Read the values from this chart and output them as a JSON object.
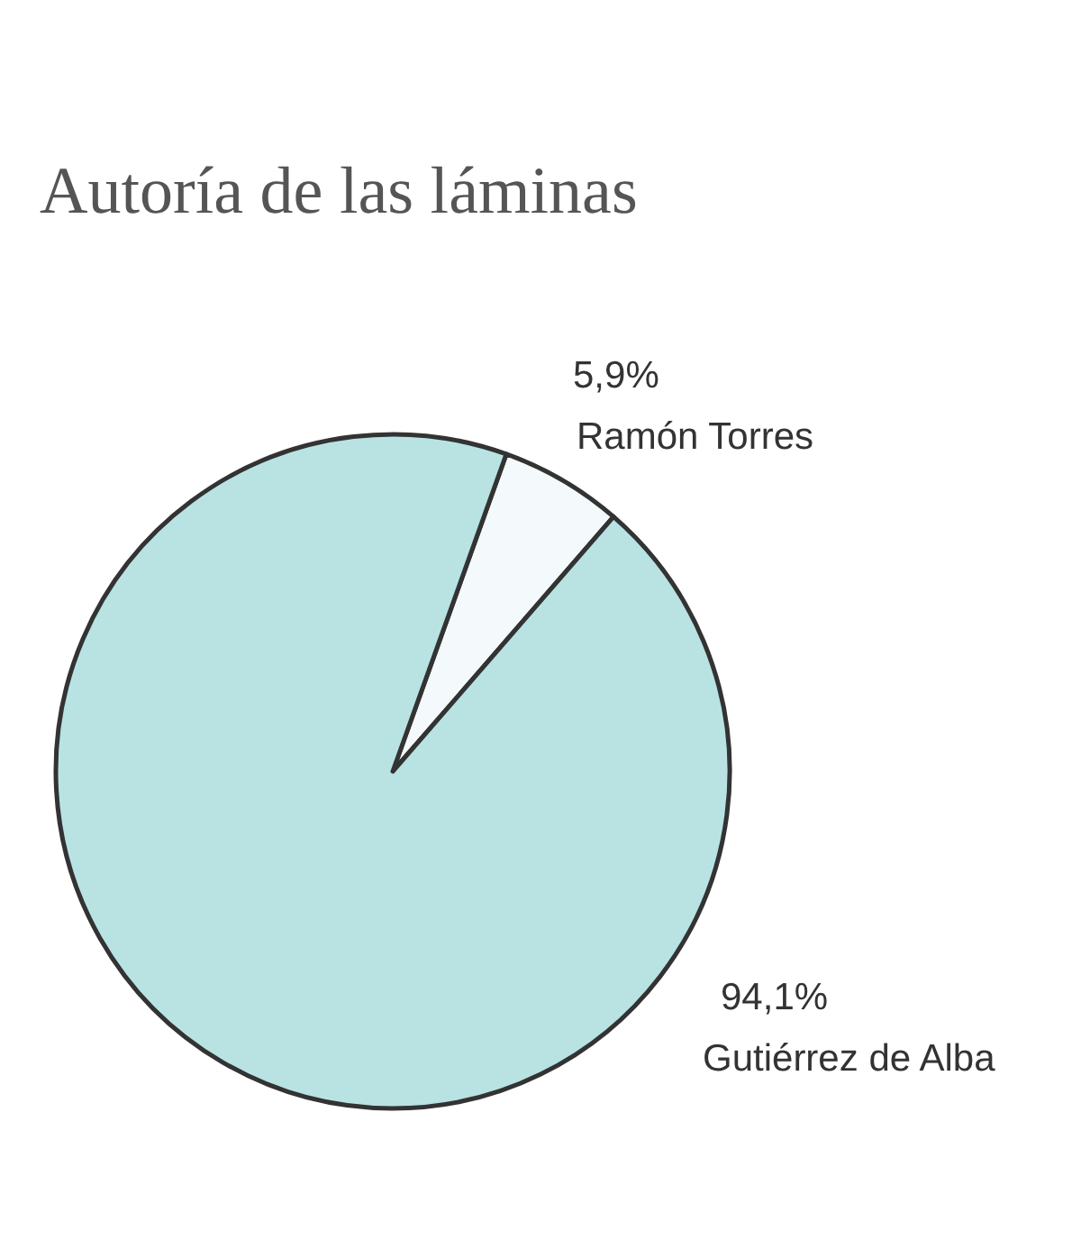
{
  "chart_data": {
    "type": "pie",
    "title": "Autoría de las láminas",
    "categories": [
      "Ramón Torres",
      "Gutiérrez de Alba"
    ],
    "values": [
      5.9,
      94.1
    ],
    "value_labels": [
      "5,9%",
      "94,1%"
    ],
    "colors": [
      "#f4fafb",
      "#b9e3e3"
    ],
    "legend": false
  }
}
